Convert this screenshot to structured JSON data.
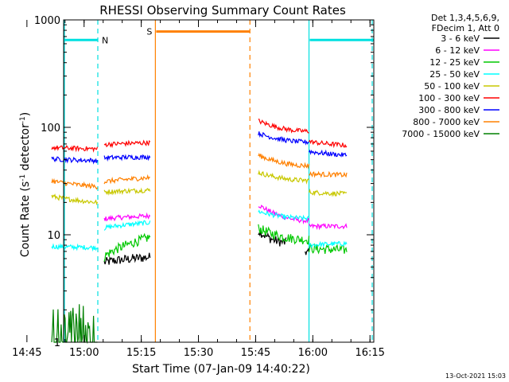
{
  "chart_data": {
    "type": "line",
    "title": "RHESSI Observing Summary Count Rates",
    "xlabel": "Start Time (07-Jan-09 14:40:22)",
    "ylabel_main": "Count Rate (s",
    "ylabel_sup1": "-1",
    "ylabel_mid": " detector",
    "ylabel_sup2": "-1",
    "ylabel_end": ")",
    "yscale": "log",
    "ylim": [
      1,
      1000
    ],
    "xlim_minutes": [
      14.63,
      96.0
    ],
    "x_ticks": [
      {
        "label": "14:45",
        "min": 5
      },
      {
        "label": "15:00",
        "min": 20
      },
      {
        "label": "15:15",
        "min": 35
      },
      {
        "label": "15:30",
        "min": 50
      },
      {
        "label": "15:45",
        "min": 65
      },
      {
        "label": "16:00",
        "min": 80
      },
      {
        "label": "16:15",
        "min": 95
      }
    ],
    "y_ticks": [
      {
        "label": "1",
        "v": 1
      },
      {
        "label": "10",
        "v": 10
      },
      {
        "label": "100",
        "v": 100
      },
      {
        "label": "1000",
        "v": 1000
      }
    ],
    "legend_header": [
      "Det 1,3,4,5,6,9,",
      "FDecim 1, Att 0"
    ],
    "series": [
      {
        "name": "3 - 6 keV",
        "color": "#000000",
        "segments": [
          [
            [
              0,
              0
            ],
            [
              0,
              0
            ]
          ],
          [
            [
              25.3,
              5.5
            ],
            [
              37.3,
              6.2
            ]
          ],
          [
            [
              65.7,
              11
            ],
            [
              73,
              8.5
            ]
          ],
          [
            [
              78,
              7.0
            ],
            [
              79,
              6.8
            ]
          ]
        ]
      },
      {
        "name": "6 - 12 keV",
        "color": "#ff00ff",
        "segments": [
          [
            [
              25.3,
              14
            ],
            [
              37.3,
              15
            ]
          ],
          [
            [
              65.7,
              19
            ],
            [
              79,
              13.5
            ]
          ],
          [
            [
              79,
              12
            ],
            [
              88.9,
              12
            ]
          ]
        ]
      },
      {
        "name": "12 - 25 keV",
        "color": "#00c800",
        "segments": [
          [
            [
              25.3,
              6.2
            ],
            [
              37.3,
              9.5
            ]
          ],
          [
            [
              65.7,
              11.5
            ],
            [
              79,
              9.0
            ]
          ],
          [
            [
              79,
              7.5
            ],
            [
              88.9,
              7.2
            ]
          ]
        ]
      },
      {
        "name": "25 - 50 keV",
        "color": "#00ffff",
        "segments": [
          [
            [
              11.5,
              7.8
            ],
            [
              23.5,
              7.6
            ]
          ],
          [
            [
              25.3,
              11.5
            ],
            [
              37.3,
              13
            ]
          ],
          [
            [
              65.7,
              16.5
            ],
            [
              79,
              14.2
            ]
          ],
          [
            [
              79,
              8.0
            ],
            [
              88.9,
              8.3
            ]
          ]
        ]
      },
      {
        "name": "50 - 100 keV",
        "color": "#c8c800",
        "segments": [
          [
            [
              11.5,
              23
            ],
            [
              23.5,
              20
            ]
          ],
          [
            [
              25.3,
              25
            ],
            [
              37.3,
              26
            ]
          ],
          [
            [
              65.7,
              38
            ],
            [
              79,
              32
            ]
          ],
          [
            [
              79,
              25
            ],
            [
              88.9,
              24
            ]
          ]
        ]
      },
      {
        "name": "100 - 300 keV",
        "color": "#ff0000",
        "segments": [
          [
            [
              11.5,
              65
            ],
            [
              23.5,
              63
            ]
          ],
          [
            [
              25.3,
              69
            ],
            [
              37.3,
              72
            ]
          ],
          [
            [
              65.7,
              115
            ],
            [
              79,
              92
            ]
          ],
          [
            [
              79,
              74
            ],
            [
              88.9,
              68
            ]
          ]
        ]
      },
      {
        "name": "300 - 800 keV",
        "color": "#0000ff",
        "segments": [
          [
            [
              11.5,
              51
            ],
            [
              23.5,
              49
            ]
          ],
          [
            [
              25.3,
              52
            ],
            [
              37.3,
              53
            ]
          ],
          [
            [
              65.7,
              88
            ],
            [
              79,
              73
            ]
          ],
          [
            [
              79,
              60
            ],
            [
              88.9,
              55
            ]
          ]
        ]
      },
      {
        "name": "800 - 7000 keV",
        "color": "#ff8000",
        "segments": [
          [
            [
              11.5,
              32
            ],
            [
              23.5,
              28
            ]
          ],
          [
            [
              25.3,
              31
            ],
            [
              37.3,
              34
            ]
          ],
          [
            [
              65.7,
              55
            ],
            [
              79,
              44
            ]
          ],
          [
            [
              79,
              37
            ],
            [
              88.9,
              36
            ]
          ]
        ]
      },
      {
        "name": "7000 - 15000 keV",
        "color": "#008000",
        "segments": [
          [
            [
              11.5,
              1.0
            ],
            [
              23.5,
              1.0
            ]
          ]
        ]
      }
    ],
    "annotations": [
      {
        "text": "N",
        "color": "#00e0e0",
        "kind": "night",
        "intervals": [
          [
            14.63,
            23.6
          ],
          [
            79.0,
            96.0
          ]
        ],
        "bar_y": 650
      },
      {
        "text": "S",
        "color": "#ff8000",
        "kind": "saa",
        "intervals": [
          [
            38.7,
            63.5
          ]
        ],
        "bar_y": 780
      }
    ]
  },
  "footer": {
    "timestamp": "13-Oct-2021 15:03"
  }
}
